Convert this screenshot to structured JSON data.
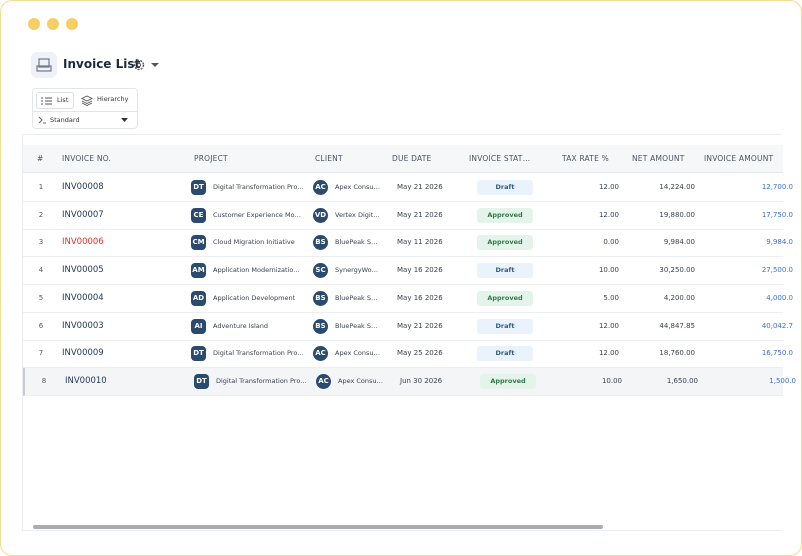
{
  "header": {
    "title": "Invoice List"
  },
  "view_tabs": [
    "List",
    "Hierarchy"
  ],
  "view_select": "Standard",
  "table": {
    "columns": [
      "#",
      "INVOICE NO.",
      "PROJECT",
      "CLIENT",
      "DUE DATE",
      "INVOICE STAT…",
      "TAX RATE %",
      "NET AMOUNT",
      "INVOICE AMOUNT"
    ],
    "rows": [
      {
        "num": "1",
        "invoice": "INV00008",
        "project_initials": "DT",
        "project": "Digital Transformation Pro…",
        "client_initials": "AC",
        "client": "Apex Consu…",
        "due": "May 21 2026",
        "status": "Draft",
        "tax": "12.00",
        "net": "14,224.00",
        "amount": "12,700.0"
      },
      {
        "num": "2",
        "invoice": "INV00007",
        "project_initials": "CE",
        "project": "Customer Experience Mo…",
        "client_initials": "VD",
        "client": "Vertex Digit…",
        "due": "May 21 2026",
        "status": "Approved",
        "tax": "12.00",
        "net": "19,880.00",
        "amount": "17,750.0"
      },
      {
        "num": "3",
        "invoice": "INV00006",
        "project_initials": "CM",
        "project": "Cloud Migration Initiative",
        "client_initials": "BS",
        "client": "BluePeak S…",
        "due": "May 11 2026",
        "status": "Approved",
        "tax": "0.00",
        "net": "9,984.00",
        "amount": "9,984.0"
      },
      {
        "num": "4",
        "invoice": "INV00005",
        "project_initials": "AM",
        "project": "Application Modernizatio…",
        "client_initials": "SC",
        "client": "SynergyWo…",
        "due": "May 16 2026",
        "status": "Draft",
        "tax": "10.00",
        "net": "30,250.00",
        "amount": "27,500.0"
      },
      {
        "num": "5",
        "invoice": "INV00004",
        "project_initials": "AD",
        "project": "Application Development",
        "client_initials": "BS",
        "client": "BluePeak S…",
        "due": "May 16 2026",
        "status": "Approved",
        "tax": "5.00",
        "net": "4,200.00",
        "amount": "4,000.0"
      },
      {
        "num": "6",
        "invoice": "INV00003",
        "project_initials": "AI",
        "project": "Adventure Island",
        "client_initials": "BS",
        "client": "BluePeak S…",
        "due": "May 21 2026",
        "status": "Draft",
        "tax": "12.00",
        "net": "44,847.85",
        "amount": "40,042.7"
      },
      {
        "num": "7",
        "invoice": "INV00009",
        "project_initials": "DT",
        "project": "Digital Transformation Pro…",
        "client_initials": "AC",
        "client": "Apex Consu…",
        "due": "May 25 2026",
        "status": "Draft",
        "tax": "12.00",
        "net": "18,760.00",
        "amount": "16,750.0"
      },
      {
        "num": "8",
        "invoice": "INV00010",
        "project_initials": "DT",
        "project": "Digital Transformation Pro…",
        "client_initials": "AC",
        "client": "Apex Consu…",
        "due": "Jun 30 2026",
        "status": "Approved",
        "tax": "10.00",
        "net": "1,650.00",
        "amount": "1,500.0"
      }
    ]
  }
}
